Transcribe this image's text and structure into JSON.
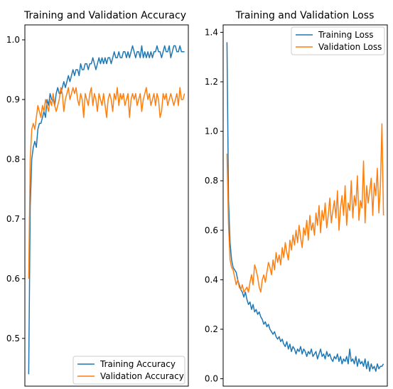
{
  "colors": {
    "training": "#1f77b4",
    "validation": "#ff7f0e",
    "axes": "#000000",
    "legend_border": "#cccccc"
  },
  "chart_data": [
    {
      "type": "line",
      "title": "Training and Validation Accuracy",
      "xlabel": "",
      "ylabel": "",
      "xlim": [
        -2.5,
        104.5
      ],
      "ylim": [
        0.42,
        1.025
      ],
      "yticks": [
        "0.5",
        "0.6",
        "0.7",
        "0.8",
        "0.9",
        "1.0"
      ],
      "legend_position": "lower-right",
      "grid": false,
      "series": [
        {
          "name": "Training Accuracy",
          "color": "#1f77b4",
          "x": [
            0,
            1,
            2,
            3,
            4,
            5,
            6,
            7,
            8,
            9,
            10,
            11,
            12,
            13,
            14,
            15,
            16,
            17,
            18,
            19,
            20,
            21,
            22,
            23,
            24,
            25,
            26,
            27,
            28,
            29,
            30,
            31,
            32,
            33,
            34,
            35,
            36,
            37,
            38,
            39,
            40,
            41,
            42,
            43,
            44,
            45,
            46,
            47,
            48,
            49,
            50,
            51,
            52,
            53,
            54,
            55,
            56,
            57,
            58,
            59,
            60,
            61,
            62,
            63,
            64,
            65,
            66,
            67,
            68,
            69,
            70,
            71,
            72,
            73,
            74,
            75,
            76,
            77,
            78,
            79,
            80,
            81,
            82,
            83,
            84,
            85,
            86,
            87,
            88,
            89,
            90,
            91,
            92,
            93,
            94,
            95,
            96,
            97,
            98,
            99,
            100,
            101,
            102
          ],
          "values": [
            0.44,
            0.72,
            0.8,
            0.82,
            0.83,
            0.82,
            0.85,
            0.86,
            0.86,
            0.87,
            0.88,
            0.87,
            0.9,
            0.89,
            0.91,
            0.9,
            0.9,
            0.89,
            0.91,
            0.92,
            0.91,
            0.91,
            0.92,
            0.93,
            0.92,
            0.93,
            0.94,
            0.93,
            0.94,
            0.95,
            0.94,
            0.95,
            0.95,
            0.94,
            0.96,
            0.95,
            0.95,
            0.96,
            0.96,
            0.95,
            0.96,
            0.96,
            0.97,
            0.96,
            0.95,
            0.96,
            0.97,
            0.96,
            0.97,
            0.96,
            0.97,
            0.96,
            0.97,
            0.97,
            0.96,
            0.97,
            0.98,
            0.97,
            0.97,
            0.98,
            0.97,
            0.97,
            0.98,
            0.98,
            0.97,
            0.98,
            0.97,
            0.98,
            0.99,
            0.98,
            0.97,
            0.98,
            0.98,
            0.97,
            0.99,
            0.97,
            0.98,
            0.97,
            0.98,
            0.97,
            0.98,
            0.97,
            0.98,
            0.98,
            0.99,
            0.98,
            0.98,
            0.97,
            0.98,
            0.99,
            0.98,
            0.98,
            0.99,
            0.97,
            0.98,
            0.99,
            0.99,
            0.98,
            0.98,
            0.99,
            0.98,
            0.98,
            0.98
          ]
        },
        {
          "name": "Validation Accuracy",
          "color": "#ff7f0e",
          "x": [
            0,
            1,
            2,
            3,
            4,
            5,
            6,
            7,
            8,
            9,
            10,
            11,
            12,
            13,
            14,
            15,
            16,
            17,
            18,
            19,
            20,
            21,
            22,
            23,
            24,
            25,
            26,
            27,
            28,
            29,
            30,
            31,
            32,
            33,
            34,
            35,
            36,
            37,
            38,
            39,
            40,
            41,
            42,
            43,
            44,
            45,
            46,
            47,
            48,
            49,
            50,
            51,
            52,
            53,
            54,
            55,
            56,
            57,
            58,
            59,
            60,
            61,
            62,
            63,
            64,
            65,
            66,
            67,
            68,
            69,
            70,
            71,
            72,
            73,
            74,
            75,
            76,
            77,
            78,
            79,
            80,
            81,
            82,
            83,
            84,
            85,
            86,
            87,
            88,
            89,
            90,
            91,
            92,
            93,
            94,
            95,
            96,
            97,
            98,
            99,
            100,
            101,
            102
          ],
          "values": [
            0.6,
            0.8,
            0.85,
            0.86,
            0.85,
            0.87,
            0.89,
            0.88,
            0.87,
            0.89,
            0.88,
            0.9,
            0.89,
            0.88,
            0.9,
            0.89,
            0.91,
            0.89,
            0.88,
            0.89,
            0.9,
            0.92,
            0.91,
            0.88,
            0.9,
            0.91,
            0.92,
            0.9,
            0.91,
            0.92,
            0.91,
            0.92,
            0.9,
            0.89,
            0.91,
            0.9,
            0.87,
            0.91,
            0.9,
            0.89,
            0.91,
            0.92,
            0.89,
            0.91,
            0.9,
            0.88,
            0.91,
            0.9,
            0.89,
            0.91,
            0.89,
            0.87,
            0.9,
            0.91,
            0.9,
            0.88,
            0.91,
            0.9,
            0.92,
            0.89,
            0.91,
            0.9,
            0.91,
            0.89,
            0.9,
            0.91,
            0.87,
            0.9,
            0.91,
            0.9,
            0.91,
            0.89,
            0.9,
            0.91,
            0.88,
            0.9,
            0.91,
            0.92,
            0.9,
            0.91,
            0.89,
            0.9,
            0.91,
            0.89,
            0.91,
            0.9,
            0.87,
            0.88,
            0.91,
            0.9,
            0.91,
            0.89,
            0.9,
            0.91,
            0.9,
            0.89,
            0.9,
            0.91,
            0.89,
            0.92,
            0.9,
            0.9,
            0.91
          ]
        }
      ]
    },
    {
      "type": "line",
      "title": "Training and Validation Loss",
      "xlabel": "",
      "ylabel": "",
      "xlim": [
        -2.5,
        104.5
      ],
      "ylim": [
        -0.03,
        1.43
      ],
      "yticks": [
        "0.0",
        "0.2",
        "0.4",
        "0.6",
        "0.8",
        "1.0",
        "1.2",
        "1.4"
      ],
      "legend_position": "upper-right",
      "grid": false,
      "series": [
        {
          "name": "Training Loss",
          "color": "#1f77b4",
          "x": [
            0,
            1,
            2,
            3,
            4,
            5,
            6,
            7,
            8,
            9,
            10,
            11,
            12,
            13,
            14,
            15,
            16,
            17,
            18,
            19,
            20,
            21,
            22,
            23,
            24,
            25,
            26,
            27,
            28,
            29,
            30,
            31,
            32,
            33,
            34,
            35,
            36,
            37,
            38,
            39,
            40,
            41,
            42,
            43,
            44,
            45,
            46,
            47,
            48,
            49,
            50,
            51,
            52,
            53,
            54,
            55,
            56,
            57,
            58,
            59,
            60,
            61,
            62,
            63,
            64,
            65,
            66,
            67,
            68,
            69,
            70,
            71,
            72,
            73,
            74,
            75,
            76,
            77,
            78,
            79,
            80,
            81,
            82,
            83,
            84,
            85,
            86,
            87,
            88,
            89,
            90,
            91,
            92,
            93,
            94,
            95,
            96,
            97,
            98,
            99,
            100,
            101,
            102
          ],
          "values": [
            1.36,
            0.72,
            0.55,
            0.48,
            0.45,
            0.44,
            0.43,
            0.4,
            0.38,
            0.36,
            0.35,
            0.33,
            0.35,
            0.32,
            0.3,
            0.31,
            0.28,
            0.3,
            0.27,
            0.28,
            0.26,
            0.27,
            0.25,
            0.24,
            0.22,
            0.23,
            0.21,
            0.22,
            0.2,
            0.19,
            0.18,
            0.19,
            0.17,
            0.16,
            0.17,
            0.15,
            0.16,
            0.14,
            0.13,
            0.15,
            0.12,
            0.14,
            0.11,
            0.13,
            0.12,
            0.1,
            0.12,
            0.11,
            0.13,
            0.1,
            0.12,
            0.11,
            0.09,
            0.11,
            0.1,
            0.12,
            0.09,
            0.1,
            0.11,
            0.08,
            0.1,
            0.12,
            0.09,
            0.1,
            0.08,
            0.11,
            0.09,
            0.1,
            0.08,
            0.07,
            0.09,
            0.08,
            0.1,
            0.07,
            0.09,
            0.06,
            0.08,
            0.07,
            0.09,
            0.06,
            0.12,
            0.07,
            0.08,
            0.06,
            0.09,
            0.05,
            0.08,
            0.06,
            0.07,
            0.05,
            0.08,
            0.04,
            0.07,
            0.03,
            0.06,
            0.04,
            0.05,
            0.03,
            0.06,
            0.04,
            0.05,
            0.05,
            0.06
          ]
        },
        {
          "name": "Validation Loss",
          "color": "#ff7f0e",
          "x": [
            0,
            1,
            2,
            3,
            4,
            5,
            6,
            7,
            8,
            9,
            10,
            11,
            12,
            13,
            14,
            15,
            16,
            17,
            18,
            19,
            20,
            21,
            22,
            23,
            24,
            25,
            26,
            27,
            28,
            29,
            30,
            31,
            32,
            33,
            34,
            35,
            36,
            37,
            38,
            39,
            40,
            41,
            42,
            43,
            44,
            45,
            46,
            47,
            48,
            49,
            50,
            51,
            52,
            53,
            54,
            55,
            56,
            57,
            58,
            59,
            60,
            61,
            62,
            63,
            64,
            65,
            66,
            67,
            68,
            69,
            70,
            71,
            72,
            73,
            74,
            75,
            76,
            77,
            78,
            79,
            80,
            81,
            82,
            83,
            84,
            85,
            86,
            87,
            88,
            89,
            90,
            91,
            92,
            93,
            94,
            95,
            96,
            97,
            98,
            99,
            100,
            101,
            102
          ],
          "values": [
            0.91,
            0.62,
            0.48,
            0.45,
            0.44,
            0.41,
            0.38,
            0.4,
            0.37,
            0.36,
            0.38,
            0.35,
            0.36,
            0.37,
            0.35,
            0.39,
            0.42,
            0.38,
            0.46,
            0.44,
            0.41,
            0.37,
            0.35,
            0.4,
            0.42,
            0.39,
            0.43,
            0.47,
            0.45,
            0.42,
            0.48,
            0.44,
            0.51,
            0.47,
            0.5,
            0.46,
            0.53,
            0.49,
            0.55,
            0.51,
            0.48,
            0.56,
            0.52,
            0.58,
            0.54,
            0.6,
            0.55,
            0.62,
            0.57,
            0.53,
            0.61,
            0.58,
            0.64,
            0.56,
            0.66,
            0.6,
            0.63,
            0.58,
            0.67,
            0.62,
            0.7,
            0.59,
            0.68,
            0.64,
            0.71,
            0.61,
            0.66,
            0.73,
            0.63,
            0.68,
            0.72,
            0.65,
            0.76,
            0.6,
            0.69,
            0.74,
            0.66,
            0.78,
            0.62,
            0.71,
            0.68,
            0.8,
            0.65,
            0.74,
            0.7,
            0.82,
            0.64,
            0.72,
            0.69,
            0.88,
            0.63,
            0.78,
            0.71,
            0.76,
            0.81,
            0.66,
            0.79,
            0.74,
            0.85,
            0.67,
            0.78,
            1.03,
            0.66
          ]
        }
      ]
    }
  ]
}
